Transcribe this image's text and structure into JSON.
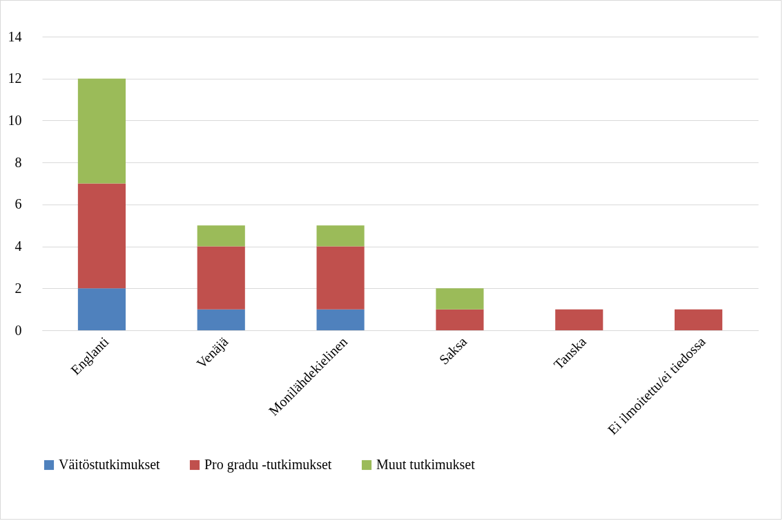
{
  "chart_data": {
    "type": "bar",
    "stacked": true,
    "categories": [
      "Englanti",
      "Venäjä",
      "Monilähdekielinen",
      "Saksa",
      "Tanska",
      "Ei ilmoitettu/ei tiedossa"
    ],
    "series": [
      {
        "name": "Väitöstutkimukset",
        "color": "#4f81bd",
        "values": [
          2,
          1,
          1,
          0,
          0,
          0
        ]
      },
      {
        "name": "Pro gradu -tutkimukset",
        "color": "#c0504d",
        "values": [
          5,
          3,
          3,
          1,
          1,
          1
        ]
      },
      {
        "name": "Muut tutkimukset",
        "color": "#9bbb59",
        "values": [
          5,
          1,
          1,
          1,
          0,
          0
        ]
      }
    ],
    "ylim": [
      0,
      14
    ],
    "yticks": [
      0,
      2,
      4,
      6,
      8,
      10,
      12,
      14
    ],
    "grid": "y",
    "legend": "bottom"
  }
}
